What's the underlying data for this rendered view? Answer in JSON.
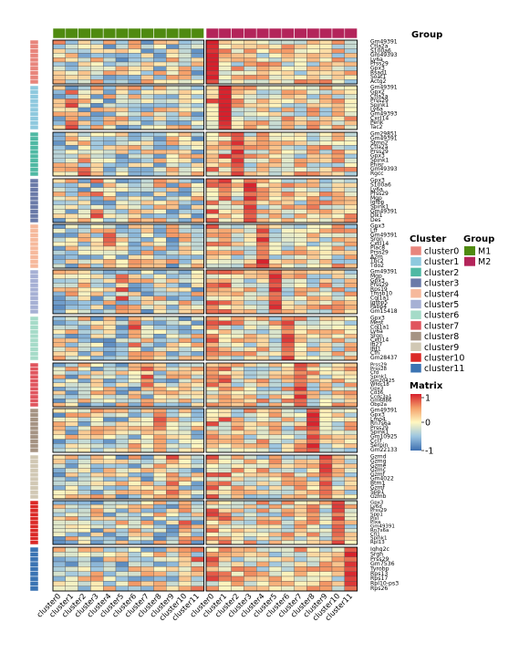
{
  "chart_data": {
    "type": "heatmap",
    "title": "",
    "xlabel": "",
    "ylabel": "",
    "top_annotation": {
      "title": "Group",
      "values": [
        "M1",
        "M1",
        "M1",
        "M1",
        "M1",
        "M1",
        "M1",
        "M1",
        "M1",
        "M1",
        "M1",
        "M1",
        "M2",
        "M2",
        "M2",
        "M2",
        "M2",
        "M2",
        "M2",
        "M2",
        "M2",
        "M2",
        "M2",
        "M2"
      ]
    },
    "columns": [
      "cluster0",
      "cluster1",
      "cluster2",
      "cluster3",
      "cluster4",
      "cluster5",
      "cluster6",
      "cluster7",
      "cluster8",
      "cluster9",
      "cluster10",
      "cluster11",
      "cluster0",
      "cluster1",
      "cluster2",
      "cluster3",
      "cluster4",
      "cluster5",
      "cluster6",
      "cluster7",
      "cluster8",
      "cluster9",
      "cluster10",
      "cluster11"
    ],
    "row_blocks": [
      {
        "cluster": "cluster0",
        "genes": [
          "Gm49391",
          "Ctla2a",
          "S100a6",
          "Gm49393",
          "Ly6a",
          "Prss29",
          "Gpx3",
          "Rsad1",
          "Soat1",
          "Actg2"
        ]
      },
      {
        "cluster": "cluster1",
        "genes": [
          "Gm49391",
          "Gpx2",
          "Ctla2a",
          "Prss29",
          "Spink1",
          "Ly6a",
          "Gm49393",
          "Cxcl14",
          "Penk",
          "Tac2"
        ]
      },
      {
        "cluster": "cluster2",
        "genes": [
          "Gm29851",
          "Gm49391",
          "Stmn2",
          "Ctla2a",
          "Prss29",
          "Gpx3",
          "Spink1",
          "Pnisr",
          "Gm49393",
          "Rgcc"
        ]
      },
      {
        "cluster": "cluster3",
        "genes": [
          "Gpx3",
          "S100a6",
          "Ly6a",
          "Prss29",
          "Mgp",
          "Igfbp",
          "Spink1",
          "Gm49391",
          "Dlk1",
          "Des"
        ]
      },
      {
        "cluster": "cluster4",
        "genes": [
          "Gpx3",
          "Ltf",
          "Gm49391",
          "Srgn",
          "Cxcl14",
          "Plac8",
          "Prss29",
          "A2m",
          "Tbc2",
          "Tdo2"
        ]
      },
      {
        "cluster": "cluster5",
        "genes": [
          "Gm49391",
          "Mgp",
          "Gpx3",
          "Prss29",
          "Rps19",
          "Tmsb10",
          "Col1a1",
          "Igfbp5",
          "Fabp4",
          "Gm15418"
        ]
      },
      {
        "cluster": "cluster6",
        "genes": [
          "Gpx3",
          "Mest",
          "Col1a1",
          "Ly6a",
          "Srgn",
          "Cxcl14",
          "Ifi27",
          "Ifit1",
          "Cfh",
          "Gm28437"
        ]
      },
      {
        "cluster": "cluster7",
        "genes": [
          "Prss29",
          "Prss28",
          "Cfd",
          "Spink1",
          "Gm20425",
          "Wfdc18",
          "Gpx3",
          "Cd36",
          "Ccdc3a1",
          "Gm6886",
          "Obp2a"
        ]
      },
      {
        "cluster": "cluster8",
        "genes": [
          "Gm49391",
          "Gpx3",
          "Lmo4",
          "Rn7s6a",
          "Prss29",
          "Spink1",
          "Gm10925",
          "Ccl7",
          "Serpin",
          "Gm22133"
        ]
      },
      {
        "cluster": "cluster9",
        "genes": [
          "Gzmd",
          "Gzmg",
          "Gzme",
          "Gzmc",
          "Gzmf",
          "Gm4022",
          "Btm1",
          "Gzmf",
          "Spp1",
          "Gzmb"
        ]
      },
      {
        "cluster": "cluster10",
        "genes": [
          "Gpx3",
          "Ly6d",
          "Prss29",
          "Spp1",
          "Pisl",
          "Plxa",
          "Gm49391",
          "Rn7s6a",
          "Cfl1",
          "Spink1",
          "Rpl13"
        ]
      },
      {
        "cluster": "cluster11",
        "genes": [
          "Iqhg2c",
          "Srgn",
          "Prss29",
          "Gm7536",
          "Tyrobp",
          "Rps13",
          "Rps17",
          "Rpl10-ps3",
          "Rps26"
        ]
      }
    ],
    "legends": {
      "cluster": {
        "title": "Cluster",
        "entries": [
          {
            "label": "cluster0",
            "color": "#e8857c"
          },
          {
            "label": "cluster1",
            "color": "#8ec9de"
          },
          {
            "label": "cluster2",
            "color": "#4fb9a3"
          },
          {
            "label": "cluster3",
            "color": "#6a7aa8"
          },
          {
            "label": "cluster4",
            "color": "#f6b99c"
          },
          {
            "label": "cluster5",
            "color": "#a6b0d4"
          },
          {
            "label": "cluster6",
            "color": "#a5dbc8"
          },
          {
            "label": "cluster7",
            "color": "#e0555e"
          },
          {
            "label": "cluster8",
            "color": "#a59383"
          },
          {
            "label": "cluster9",
            "color": "#d1c8b4"
          },
          {
            "label": "cluster10",
            "color": "#db2826"
          },
          {
            "label": "cluster11",
            "color": "#3b74b3"
          }
        ]
      },
      "group": {
        "title": "Group",
        "entries": [
          {
            "label": "M1",
            "color": "#4f8a10"
          },
          {
            "label": "M2",
            "color": "#b3245a"
          }
        ]
      },
      "matrix": {
        "title": "Matrix",
        "ticks": [
          "1",
          "0",
          "-1"
        ],
        "range": [
          -1,
          1
        ],
        "colors": {
          "low": "#3d6fb0",
          "mid": "#fff7c0",
          "high": "#d6202c"
        }
      }
    },
    "value_scale": [
      -1,
      1
    ]
  }
}
